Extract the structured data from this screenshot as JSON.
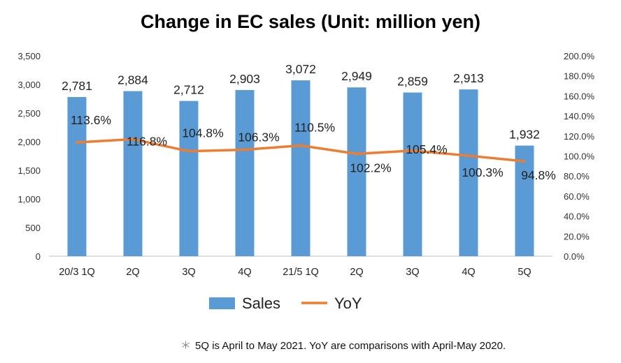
{
  "chart_data": {
    "type": "bar+line",
    "title": "Change in EC sales (Unit: million yen)",
    "categories": [
      "20/3 1Q",
      "2Q",
      "3Q",
      "4Q",
      "21/5 1Q",
      "2Q",
      "3Q",
      "4Q",
      "5Q"
    ],
    "series": [
      {
        "name": "Sales",
        "type": "bar",
        "axis": "left",
        "color": "#5b9bd5",
        "values": [
          2781,
          2884,
          2712,
          2903,
          3072,
          2949,
          2859,
          2913,
          1932
        ],
        "labels": [
          "2,781",
          "2,884",
          "2,712",
          "2,903",
          "3,072",
          "2,949",
          "2,859",
          "2,913",
          "1,932"
        ]
      },
      {
        "name": "YoY",
        "type": "line",
        "axis": "right",
        "color": "#ed7d31",
        "values": [
          113.6,
          116.8,
          104.8,
          106.3,
          110.5,
          102.2,
          105.4,
          100.3,
          94.8
        ],
        "labels": [
          "113.6%",
          "116.8%",
          "104.8%",
          "106.3%",
          "110.5%",
          "102.2%",
          "105.4%",
          "100.3%",
          "94.8%"
        ]
      }
    ],
    "y_left": {
      "ylim": [
        0,
        3500
      ],
      "ticks": [
        "0",
        "500",
        "1,000",
        "1,500",
        "2,000",
        "2,500",
        "3,000",
        "3,500"
      ]
    },
    "y_right": {
      "ylim": [
        0,
        200
      ],
      "ticks": [
        "0.0%",
        "20.0%",
        "40.0%",
        "60.0%",
        "80.0%",
        "100.0%",
        "120.0%",
        "140.0%",
        "160.0%",
        "180.0%",
        "200.0%"
      ]
    },
    "grid": false,
    "legend_position": "bottom"
  },
  "footnote": {
    "mark": "＊",
    "text": "5Q is April to May 2021. YoY are comparisons with April-May 2020."
  }
}
